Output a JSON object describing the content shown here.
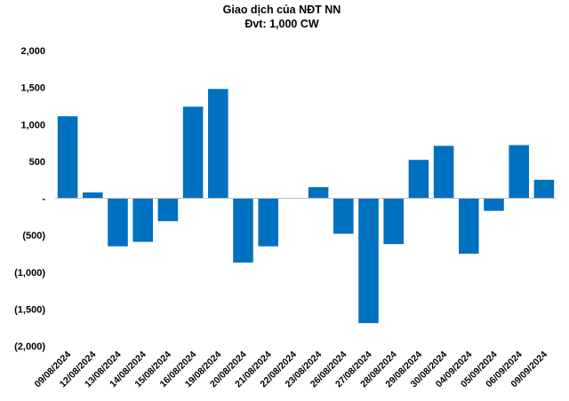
{
  "chart_data": {
    "type": "bar",
    "title": "Giao dịch của NĐT NN",
    "subtitle": "Đvt: 1,000 CW",
    "xlabel": "",
    "ylabel": "",
    "ylim": [
      -2000,
      2000
    ],
    "yticks": [
      2000,
      1500,
      1000,
      500,
      0,
      -500,
      -1000,
      -1500,
      -2000
    ],
    "ytick_labels": [
      "2,000",
      "1,500",
      "1,000",
      "500",
      "-",
      "(500)",
      "(1,000)",
      "(1,500)",
      "(2,000)"
    ],
    "grid": false,
    "legend": "none",
    "bar_color": "#0070c0",
    "categories": [
      "09/08/2024",
      "12/08/2024",
      "13/08/2024",
      "14/08/2024",
      "15/08/2024",
      "16/08/2024",
      "19/08/2024",
      "20/08/2024",
      "21/08/2024",
      "22/08/2024",
      "23/08/2024",
      "26/08/2024",
      "27/08/2024",
      "28/08/2024",
      "29/08/2024",
      "30/08/2024",
      "04/09/2024",
      "05/09/2024",
      "06/09/2024",
      "09/09/2024"
    ],
    "values": [
      1110,
      80,
      -650,
      -590,
      -310,
      1240,
      1480,
      -870,
      -650,
      0,
      150,
      -480,
      -1690,
      -620,
      520,
      710,
      -750,
      -170,
      720,
      250
    ]
  }
}
